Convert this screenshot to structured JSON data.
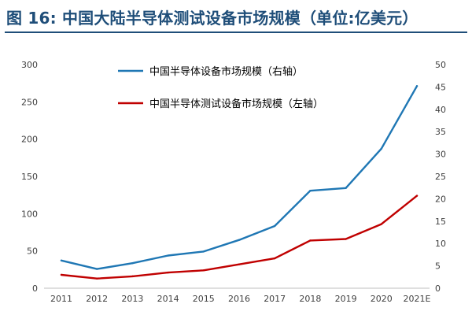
{
  "title": "图 16: 中国大陆半导体测试设备市场规模（单位:亿美元）",
  "chart_data": {
    "type": "line",
    "categories": [
      "2011",
      "2012",
      "2013",
      "2014",
      "2015",
      "2016",
      "2017",
      "2018",
      "2019",
      "2020",
      "2021E"
    ],
    "left_axis": {
      "min": 0,
      "max": 300,
      "ticks": [
        "0",
        "50",
        "100",
        "150",
        "200",
        "250",
        "300"
      ]
    },
    "right_axis": {
      "min": 0,
      "max": 50,
      "ticks": [
        "0",
        "5",
        "10",
        "15",
        "20",
        "25",
        "30",
        "35",
        "40",
        "45",
        "50"
      ]
    },
    "grid": false,
    "legend_position": "top-left",
    "series": [
      {
        "name": "中国半导体设备市场规模（右轴）",
        "axis": "right",
        "color": "#1f77b4",
        "values": [
          6.2,
          4.3,
          5.6,
          7.3,
          8.2,
          10.8,
          13.9,
          21.8,
          22.4,
          31.2,
          45.2
        ]
      },
      {
        "name": "中国半导体测试设备市场规模（左轴）",
        "axis": "left",
        "color": "#c00000",
        "values": [
          18,
          13,
          16,
          21,
          24,
          32,
          40,
          64,
          66,
          86,
          124
        ]
      }
    ]
  }
}
